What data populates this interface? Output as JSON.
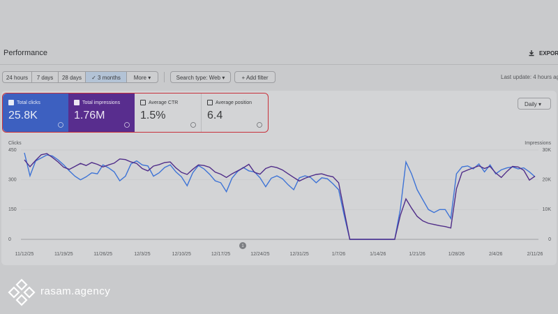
{
  "header": {
    "title": "Performance",
    "export": "EXPORT"
  },
  "toolbar": {
    "ranges": [
      "24 hours",
      "7 days",
      "28 days",
      "3 months"
    ],
    "more": "More",
    "search_type": "Search type: Web",
    "add_filter": "Add filter",
    "last_update": "Last update: 4 hours ag"
  },
  "metrics": [
    {
      "label": "Total clicks",
      "value": "25.8K"
    },
    {
      "label": "Total impressions",
      "value": "1.76M"
    },
    {
      "label": "Average CTR",
      "value": "1.5%"
    },
    {
      "label": "Average position",
      "value": "6.4"
    }
  ],
  "granularity": "Daily",
  "chart": {
    "y_label": "Clicks",
    "y2_label": "Impressions",
    "ylim": [
      0,
      450
    ],
    "yticks": [
      0,
      150,
      300,
      450
    ],
    "y2lim": [
      0,
      30000
    ],
    "y2ticks": [
      0,
      {
        "value": 10000,
        "label": "10K"
      },
      {
        "value": 20000,
        "label": "20K"
      },
      {
        "value": 30000,
        "label": "30K"
      }
    ],
    "x_labels": [
      "11/12/25",
      "11/19/25",
      "11/26/25",
      "12/3/25",
      "12/10/25",
      "12/17/25",
      "12/24/25",
      "12/31/25",
      "1/7/26",
      "1/14/26",
      "1/21/26",
      "1/28/26",
      "2/4/26",
      "2/11/26"
    ],
    "series": [
      {
        "color": "#3d73d6",
        "values": [
          436,
          320,
          395,
          410,
          425,
          420,
          400,
          375,
          345,
          318,
          300,
          315,
          335,
          330,
          375,
          360,
          340,
          295,
          318,
          380,
          395,
          375,
          370,
          318,
          335,
          362,
          375,
          340,
          315,
          270,
          335,
          372,
          355,
          328,
          295,
          285,
          240,
          308,
          342,
          362,
          345,
          340,
          310,
          265,
          308,
          320,
          305,
          275,
          250,
          310,
          320,
          312,
          285,
          310,
          305,
          280,
          250,
          120,
          0,
          0,
          0,
          0,
          0,
          0,
          0,
          0,
          0,
          150,
          390,
          330,
          250,
          200,
          150,
          135,
          150,
          150,
          105,
          330,
          365,
          370,
          355,
          380,
          340,
          375,
          330,
          350,
          360,
          365,
          355,
          360,
          340,
          315
        ]
      },
      {
        "color": "#4f2c88",
        "axis": "y2",
        "values": [
          26700,
          24400,
          26500,
          28400,
          28800,
          27500,
          26000,
          24200,
          23500,
          24500,
          25500,
          24800,
          25800,
          25200,
          24300,
          25000,
          25600,
          27000,
          26800,
          26000,
          25500,
          23800,
          23000,
          24600,
          25100,
          25800,
          26000,
          24000,
          22500,
          21800,
          23500,
          25000,
          24800,
          24200,
          22600,
          21900,
          20800,
          22000,
          23000,
          24000,
          25200,
          22500,
          21900,
          23800,
          24500,
          24100,
          23300,
          22000,
          20800,
          19600,
          20500,
          21200,
          21800,
          22000,
          21400,
          21000,
          19000,
          9500,
          0,
          0,
          0,
          0,
          0,
          0,
          0,
          0,
          0,
          8000,
          13600,
          10500,
          7700,
          6200,
          5400,
          5000,
          4600,
          4300,
          3800,
          17000,
          22500,
          23300,
          24000,
          24700,
          23800,
          24500,
          22300,
          20800,
          22800,
          24500,
          24300,
          23200,
          19900,
          21200
        ]
      }
    ],
    "annotation": "1"
  },
  "logo": "rasam.agency"
}
